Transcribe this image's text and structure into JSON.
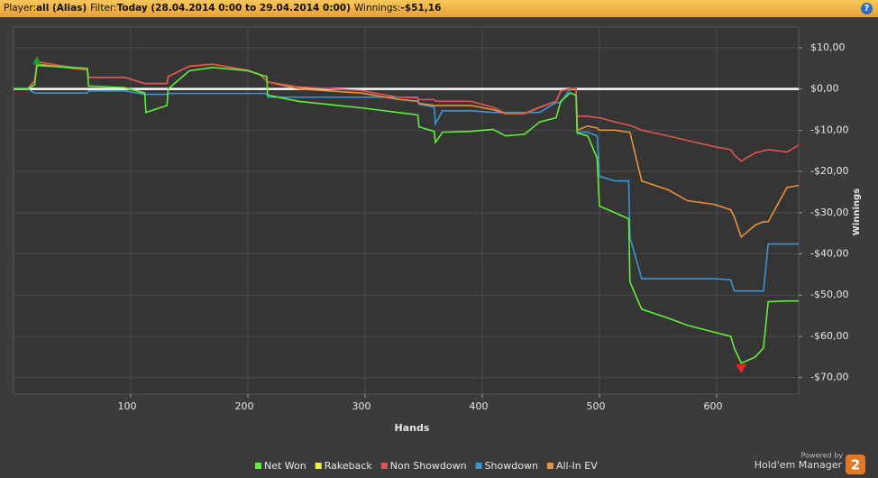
{
  "header": {
    "player_label": "Player:",
    "player": "all (Alias)",
    "filter_label": "Filter:",
    "filter": "Today (28.04.2014 0:00 to 29.04.2014 0:00)",
    "winnings_label": "Winnings:",
    "winnings": "-$51,16",
    "help": "?"
  },
  "logo": {
    "powered": "Powered by",
    "name": "Hold'em Manager",
    "version": "2"
  },
  "chart_data": {
    "type": "line",
    "x_label": "Hands",
    "y_label": "Winnings",
    "x": [
      0,
      12,
      18,
      20,
      63,
      64,
      95,
      112,
      113,
      131,
      132,
      150,
      170,
      200,
      210,
      216,
      217,
      243,
      297,
      328,
      345,
      346,
      359,
      360,
      366,
      390,
      409,
      420,
      436,
      449,
      463,
      467,
      475,
      480,
      481,
      490,
      498,
      500,
      513,
      525,
      526,
      536,
      559,
      575,
      598,
      612,
      615,
      621,
      633,
      640,
      644,
      660,
      670
    ],
    "xlim": [
      0,
      670
    ],
    "xticks": [
      100,
      200,
      300,
      400,
      500,
      600
    ],
    "ylim": [
      -74,
      15
    ],
    "yticks": [
      {
        "value": 10,
        "label": "$10,00"
      },
      {
        "value": 0,
        "label": "$0,00"
      },
      {
        "value": -10,
        "label": "-$10,00"
      },
      {
        "value": -20,
        "label": "-$20,00"
      },
      {
        "value": -30,
        "label": "-$30,00"
      },
      {
        "value": -40,
        "label": "-$40,00"
      },
      {
        "value": -50,
        "label": "-$50,00"
      },
      {
        "value": -60,
        "label": "-$60,00"
      },
      {
        "value": -70,
        "label": "-$70,00"
      }
    ],
    "grid": true,
    "series": [
      {
        "name": "Net Won",
        "color": "#62ee3c",
        "values": [
          0,
          0,
          1,
          5.7,
          5,
          0.7,
          0.3,
          -1,
          -5.7,
          -4,
          0,
          4.4,
          5.2,
          4.4,
          3.5,
          3,
          -1.5,
          -3,
          -4.6,
          -5.7,
          -6.3,
          -9.2,
          -10.3,
          -13,
          -10.5,
          -10.3,
          -9.8,
          -11.4,
          -11,
          -8,
          -7,
          -3,
          -1,
          -1.5,
          -10.7,
          -11.4,
          -16.8,
          -28.4,
          -30,
          -31.5,
          -46.8,
          -53.4,
          -55.6,
          -57.3,
          -59,
          -60,
          -62.8,
          -66.5,
          -65,
          -62.8,
          -51.6,
          -51.4,
          -51.4
        ]
      },
      {
        "name": "Rakeback",
        "color": "#eeee3c",
        "values": [
          0,
          0,
          0,
          0,
          0,
          0,
          0,
          0,
          0,
          0,
          0,
          0,
          0,
          0,
          0,
          0,
          0,
          0,
          0,
          0,
          0,
          0,
          0,
          0,
          0,
          0,
          0,
          0,
          0,
          0,
          0,
          0,
          0,
          0,
          0,
          0,
          0,
          0,
          0,
          0,
          0,
          0,
          0,
          0,
          0,
          0,
          0,
          0,
          0,
          0,
          0,
          0,
          0
        ]
      },
      {
        "name": "Non Showdown",
        "color": "#dd5550",
        "values": [
          0,
          0,
          2,
          6.6,
          4.6,
          2.8,
          2.8,
          1.3,
          1.3,
          1.3,
          3,
          5.5,
          6,
          4.5,
          3.5,
          2,
          1.7,
          0.5,
          -0.4,
          -2,
          -2.2,
          -2.6,
          -2.6,
          -3,
          -3,
          -3,
          -4.4,
          -5.9,
          -5.9,
          -4.4,
          -3,
          -0.4,
          0,
          0.2,
          -6.6,
          -6.6,
          -7,
          -7,
          -8,
          -8.8,
          -8.8,
          -10,
          -11.4,
          -12.5,
          -14,
          -14.7,
          -16,
          -17.5,
          -15.5,
          -15,
          -14.7,
          -15.3,
          -13.6
        ]
      },
      {
        "name": "Showdown",
        "color": "#3a96d8",
        "values": [
          0,
          0,
          -1,
          -1,
          -1,
          -0.5,
          -0.5,
          -1.3,
          -1.3,
          -1.3,
          -1.1,
          -1.1,
          -1.1,
          -1.1,
          -1.1,
          -1.1,
          -2,
          -2,
          -2,
          -2,
          -2,
          -3.7,
          -4.4,
          -8.5,
          -5.3,
          -5.3,
          -5.7,
          -5.7,
          -5.7,
          -5.7,
          -3.3,
          -3.3,
          0,
          0,
          -10.5,
          -10.5,
          -11.4,
          -21.2,
          -22.3,
          -22.3,
          -35.9,
          -46,
          -46,
          -46,
          -46,
          -46.3,
          -49,
          -49,
          -49,
          -49,
          -37.6,
          -37.6,
          -37.6
        ]
      },
      {
        "name": "All-In EV",
        "color": "#e8913a",
        "values": [
          0,
          0,
          2,
          6,
          4.6,
          2.8,
          2.8,
          1.3,
          1.3,
          1.3,
          3,
          5.5,
          6,
          4.5,
          3.5,
          2,
          1.7,
          0,
          -1,
          -2.5,
          -3,
          -3.5,
          -4,
          -4,
          -4,
          -4,
          -5,
          -6,
          -6,
          -4.5,
          -3,
          -0.5,
          0,
          0,
          -10,
          -9,
          -9.5,
          -10,
          -10,
          -10.5,
          -10.5,
          -22.3,
          -24.5,
          -27.1,
          -28,
          -29.3,
          -31,
          -35.9,
          -33,
          -32.2,
          -32.2,
          -23.9,
          -23.4
        ]
      }
    ],
    "draw_order": [
      1,
      3,
      4,
      2,
      0
    ]
  }
}
